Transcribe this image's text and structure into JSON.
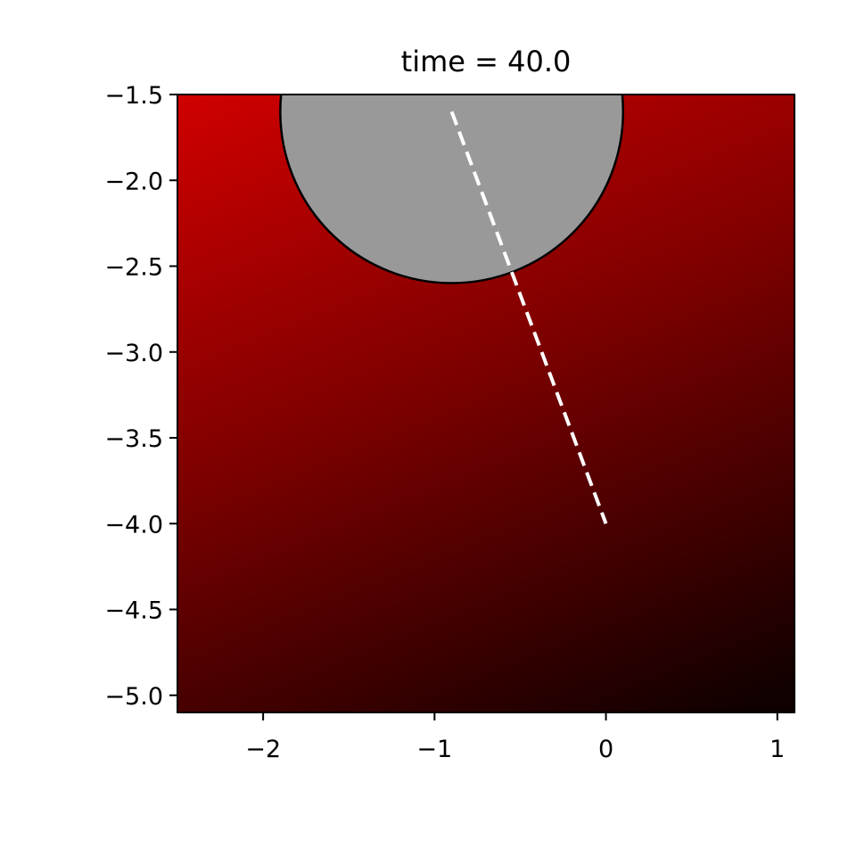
{
  "title": "time = 40.0",
  "chart_data": {
    "type": "heatmap",
    "title": "time = 40.0",
    "xlabel": "",
    "ylabel": "",
    "xlim": [
      -2.5,
      1.1
    ],
    "ylim": [
      -5.1,
      -1.5
    ],
    "xticks": [
      -2,
      -1,
      0,
      1
    ],
    "xtick_labels": [
      "−2",
      "−1",
      "0",
      "1"
    ],
    "yticks": [
      -1.5,
      -2.0,
      -2.5,
      -3.0,
      -3.5,
      -4.0,
      -4.5,
      -5.0
    ],
    "ytick_labels": [
      "−1.5",
      "−2.0",
      "−2.5",
      "−3.0",
      "−3.5",
      "−4.0",
      "−4.5",
      "−5.0"
    ],
    "colormap": {
      "brightest": "#d00000",
      "mid": "#800000",
      "darkest": "#100000",
      "brightest_corner": "top-left",
      "darkest_corner": "bottom-right"
    },
    "circle": {
      "center": [
        -0.9,
        -1.6
      ],
      "radius": 1.0,
      "fill": "#999999",
      "edge_color": "#000000"
    },
    "trajectory": {
      "x": [
        -0.9,
        0.0
      ],
      "y": [
        -1.6,
        -4.0
      ],
      "color": "#ffffff",
      "style": "dashed"
    },
    "grid": false,
    "legend": "none"
  }
}
